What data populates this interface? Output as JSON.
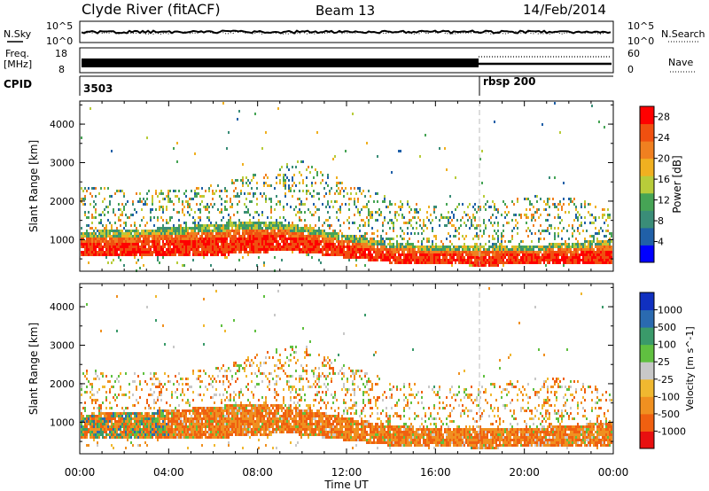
{
  "header": {
    "station": "Clyde River (fitACF)",
    "beam": "Beam 13",
    "date": "14/Feb/2014"
  },
  "status_panels": {
    "nsky": {
      "label": "N.Sky",
      "ticks": [
        "10^5",
        "10^0"
      ]
    },
    "nsearch": {
      "label": "N.Search",
      "ticks": [
        "10^5",
        "10^0"
      ]
    },
    "freq": {
      "label_top": "Freq.",
      "label_unit": "[MHz]",
      "ticks": [
        "18",
        "8"
      ]
    },
    "nave": {
      "label": "Nave",
      "ticks": [
        "60",
        "0"
      ]
    },
    "cpid": {
      "label": "CPID",
      "programs": [
        {
          "name": "3503",
          "start": "00:00"
        },
        {
          "name": "rbsp 200",
          "start": "18:00"
        }
      ]
    }
  },
  "x_axis": {
    "label": "Time UT",
    "ticks": [
      "00:00",
      "04:00",
      "08:00",
      "12:00",
      "16:00",
      "20:00",
      "00:00"
    ]
  },
  "colors": {
    "power": [
      "#0000ff",
      "#2060a8",
      "#3a8d78",
      "#46a455",
      "#b8cc3a",
      "#f0b020",
      "#f08020",
      "#f05010",
      "#ff0000"
    ],
    "velocity": [
      "#1030c0",
      "#2a6ab0",
      "#3a9a6a",
      "#60c040",
      "#c8c8c8",
      "#f0b830",
      "#f09020",
      "#f06010",
      "#e81010"
    ]
  },
  "chart_data": [
    {
      "type": "heatmap",
      "title": "Power",
      "xlabel": "Time UT",
      "ylabel": "Slant Range [km]",
      "x_range_hours": [
        0,
        24
      ],
      "ylim": [
        180,
        4600
      ],
      "y_ticks": [
        1000,
        2000,
        3000,
        4000
      ],
      "colorbar": {
        "label": "Power [dB]",
        "range": [
          0,
          30
        ],
        "ticks": [
          4,
          8,
          12,
          16,
          20,
          24,
          28
        ]
      },
      "bands": [
        {
          "name": "main echo lower edge",
          "x": [
            0,
            2,
            4,
            6,
            8,
            9,
            10,
            12,
            14,
            16,
            18,
            20,
            22,
            24
          ],
          "y": [
            580,
            590,
            600,
            620,
            680,
            750,
            700,
            560,
            420,
            380,
            360,
            370,
            380,
            400
          ]
        },
        {
          "name": "main echo upper edge",
          "x": [
            0,
            2,
            4,
            6,
            8,
            9,
            10,
            12,
            14,
            16,
            18,
            20,
            22,
            24
          ],
          "y": [
            1250,
            1280,
            1350,
            1450,
            1520,
            1480,
            1380,
            1150,
            950,
            880,
            860,
            880,
            950,
            1050
          ]
        },
        {
          "name": "upper scatter",
          "x": [
            0,
            2,
            4,
            6,
            8,
            10,
            12,
            14,
            16,
            18,
            20,
            22,
            24
          ],
          "y": [
            2200,
            2150,
            2100,
            2250,
            2600,
            2900,
            2300,
            1900,
            1750,
            1800,
            1950,
            2000,
            1600
          ]
        }
      ]
    },
    {
      "type": "heatmap",
      "title": "Velocity",
      "xlabel": "Time UT",
      "ylabel": "Slant Range [km]",
      "x_range_hours": [
        0,
        24
      ],
      "ylim": [
        180,
        4600
      ],
      "y_ticks": [
        1000,
        2000,
        3000,
        4000
      ],
      "colorbar": {
        "label": "Velocity [m s^-1]",
        "ticks": [
          "1000",
          "500",
          "100",
          "25",
          "-25",
          "-100",
          "-500",
          "-1000"
        ]
      },
      "bands": [
        {
          "name": "main echo lower edge",
          "x": [
            0,
            2,
            4,
            6,
            8,
            9,
            10,
            12,
            14,
            16,
            18,
            20,
            22,
            24
          ],
          "y": [
            580,
            590,
            600,
            620,
            680,
            750,
            700,
            560,
            420,
            380,
            360,
            370,
            380,
            400
          ]
        },
        {
          "name": "main echo upper edge",
          "x": [
            0,
            2,
            4,
            6,
            8,
            9,
            10,
            12,
            14,
            16,
            18,
            20,
            22,
            24
          ],
          "y": [
            1250,
            1280,
            1350,
            1450,
            1520,
            1480,
            1380,
            1150,
            950,
            880,
            860,
            880,
            950,
            1050
          ]
        },
        {
          "name": "upper scatter",
          "x": [
            0,
            2,
            4,
            6,
            8,
            10,
            12,
            14,
            16,
            18,
            20,
            22,
            24
          ],
          "y": [
            2200,
            2150,
            2100,
            2250,
            2600,
            2900,
            2300,
            1900,
            1750,
            1800,
            1950,
            2000,
            1600
          ]
        }
      ]
    }
  ]
}
